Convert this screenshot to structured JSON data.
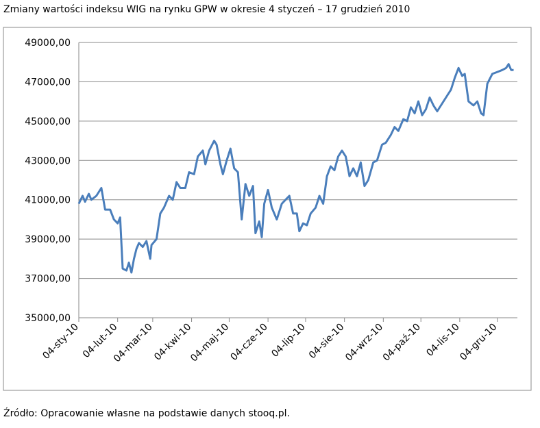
{
  "chart_data": {
    "type": "line",
    "title": "Zmiany wartości indeksu WIG na rynku GPW w okresie 4 styczeń – 17 grudzień 2010",
    "source": "Źródło: Opracowanie własne na podstawie danych stooq.pl.",
    "x": [
      0,
      3,
      5,
      8,
      10,
      14,
      18,
      21,
      25,
      28,
      31,
      33,
      35,
      38,
      40,
      42,
      44,
      46,
      48,
      51,
      54,
      57,
      58,
      62,
      65,
      68,
      72,
      75,
      78,
      81,
      85,
      88,
      92,
      95,
      99,
      101,
      104,
      108,
      110,
      113,
      115,
      118,
      121,
      124,
      127,
      130,
      133,
      136,
      139,
      141,
      144,
      146,
      148,
      151,
      154,
      158,
      162,
      165,
      168,
      171,
      174,
      176,
      179,
      182,
      185,
      189,
      192,
      195,
      198,
      201,
      204,
      207,
      210,
      213,
      216,
      219,
      222,
      225,
      228,
      231,
      235,
      238,
      242,
      245,
      249,
      252,
      255,
      259,
      262,
      265,
      268,
      271,
      274,
      277,
      280,
      283,
      286,
      290,
      294,
      297,
      300,
      303,
      306,
      308,
      311,
      315,
      318,
      321,
      323,
      326,
      330,
      334,
      338,
      341,
      343,
      345,
      347
    ],
    "series": [
      {
        "name": "WIG",
        "color": "#4a7ebb",
        "values": [
          40800,
          41200,
          40900,
          41300,
          41000,
          41200,
          41600,
          40500,
          40500,
          40000,
          39800,
          40100,
          37500,
          37400,
          37800,
          37300,
          38000,
          38500,
          38800,
          38600,
          38900,
          38000,
          38700,
          39000,
          40300,
          40600,
          41200,
          41000,
          41900,
          41600,
          41600,
          42400,
          42300,
          43200,
          43500,
          42800,
          43500,
          44000,
          43800,
          42800,
          42300,
          43000,
          43600,
          42600,
          42400,
          40000,
          41800,
          41200,
          41700,
          39300,
          39900,
          39100,
          40800,
          41500,
          40600,
          40000,
          40800,
          41000,
          41200,
          40300,
          40300,
          39400,
          39800,
          39700,
          40300,
          40600,
          41200,
          40800,
          42200,
          42700,
          42500,
          43200,
          43500,
          43200,
          42200,
          42600,
          42200,
          42900,
          41700,
          42000,
          42900,
          43000,
          43800,
          43900,
          44300,
          44700,
          44500,
          45100,
          45000,
          45700,
          45400,
          46000,
          45300,
          45600,
          46200,
          45800,
          45500,
          45900,
          46300,
          46600,
          47200,
          47700,
          47300,
          47400,
          46000,
          45800,
          46000,
          45400,
          45300,
          46900,
          47400,
          47500,
          47600,
          47700,
          47900,
          47600,
          47600
        ]
      }
    ],
    "xlim": [
      0,
      350
    ],
    "xticks": [
      {
        "value": 0,
        "label": "04-sty-10"
      },
      {
        "value": 31,
        "label": "04-lut-10"
      },
      {
        "value": 59,
        "label": "04-mar-10"
      },
      {
        "value": 90,
        "label": "04-kwi-10"
      },
      {
        "value": 120,
        "label": "04-maj-10"
      },
      {
        "value": 151,
        "label": "04-cze-10"
      },
      {
        "value": 181,
        "label": "04-lip-10"
      },
      {
        "value": 212,
        "label": "04-sie-10"
      },
      {
        "value": 243,
        "label": "04-wrz-10"
      },
      {
        "value": 273,
        "label": "04-paź-10"
      },
      {
        "value": 304,
        "label": "04-lis-10"
      },
      {
        "value": 334,
        "label": "04-gru-10"
      }
    ],
    "ylim": [
      35000,
      49000
    ],
    "yticks": [
      {
        "value": 35000,
        "label": "35000,00"
      },
      {
        "value": 37000,
        "label": "37000,00"
      },
      {
        "value": 39000,
        "label": "39000,00"
      },
      {
        "value": 41000,
        "label": "41000,00"
      },
      {
        "value": 43000,
        "label": "43000,00"
      },
      {
        "value": 45000,
        "label": "45000,00"
      },
      {
        "value": 47000,
        "label": "47000,00"
      },
      {
        "value": 49000,
        "label": "49000,00"
      }
    ],
    "grid": true
  }
}
